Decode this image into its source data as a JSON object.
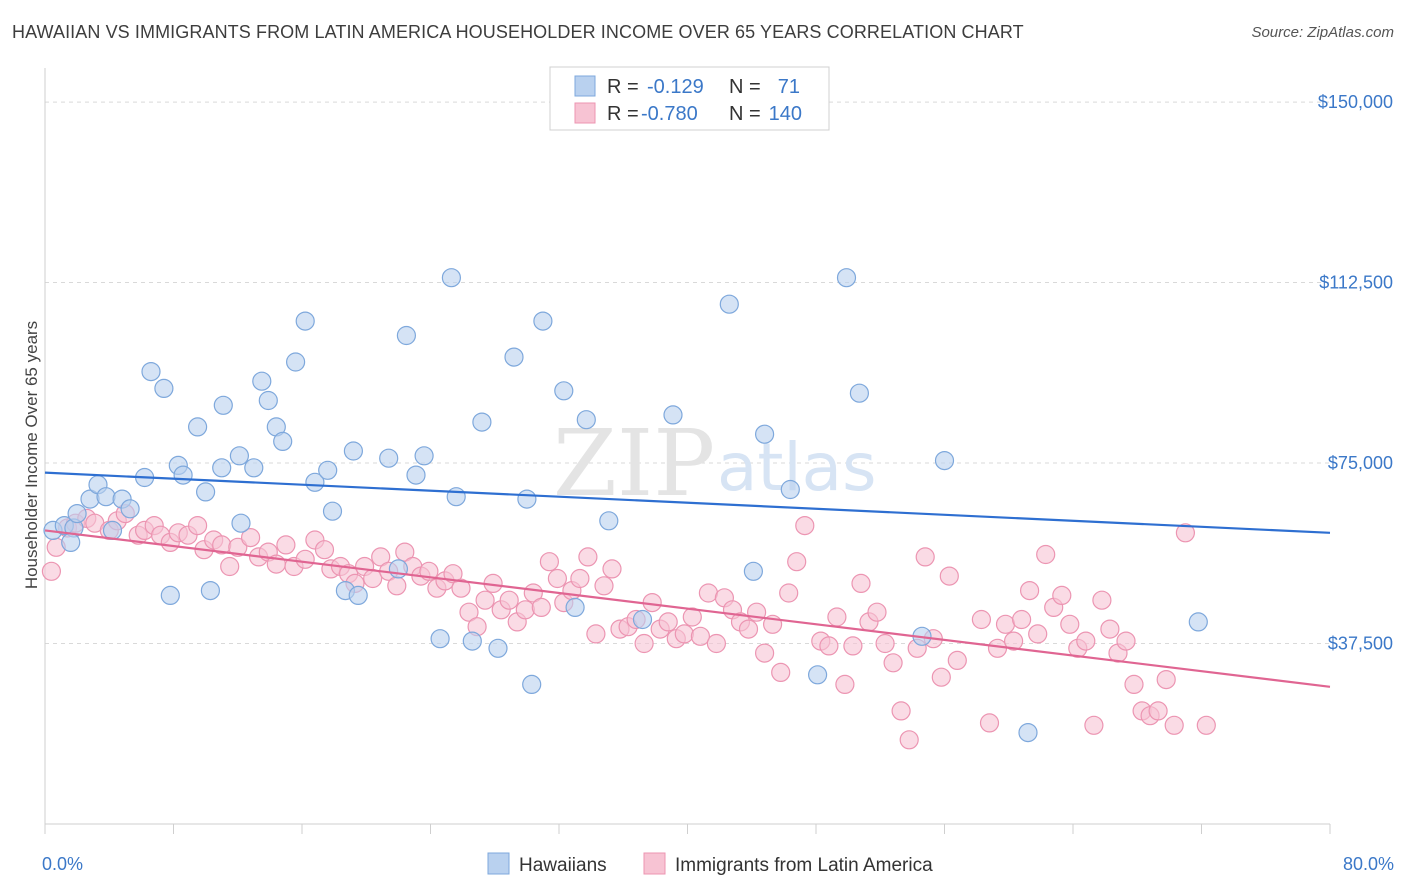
{
  "header": {
    "title": "HAWAIIAN VS IMMIGRANTS FROM LATIN AMERICA HOUSEHOLDER INCOME OVER 65 YEARS CORRELATION CHART",
    "source": "Source: ZipAtlas.com"
  },
  "watermark": {
    "zip": "ZIP",
    "atlas": "atlas"
  },
  "legend": {
    "r_label": "R =",
    "n_label": "N =",
    "series": [
      {
        "r": "-0.129",
        "n": "71"
      },
      {
        "r": "-0.780",
        "n": "140"
      }
    ]
  },
  "bottom_legend": [
    "Hawaiians",
    "Immigrants from Latin America"
  ],
  "colors": {
    "blue_fill": "#b9d1ef",
    "blue_stroke": "#7ea8dc",
    "blue_line": "#2e6fd1",
    "pink_fill": "#f7c3d3",
    "pink_stroke": "#ec95b2",
    "pink_line": "#e06592",
    "tick_text": "#3b78c8",
    "grid": "#d9d9d9"
  },
  "chart_data": {
    "type": "scatter",
    "title": "HAWAIIAN VS IMMIGRANTS FROM LATIN AMERICA HOUSEHOLDER INCOME OVER 65 YEARS CORRELATION CHART",
    "xlabel": "",
    "ylabel": "Householder Income Over 65 years",
    "xlim": [
      0,
      80
    ],
    "ylim": [
      0,
      155000
    ],
    "x_tick_labels": [
      "0.0%",
      "80.0%"
    ],
    "y_ticks": [
      37500,
      75000,
      112500,
      150000
    ],
    "y_tick_labels": [
      "$37,500",
      "$75,000",
      "$112,500",
      "$150,000"
    ],
    "grid": true,
    "legend_position": "top-center",
    "series": [
      {
        "name": "Hawaiians",
        "trend": [
          [
            0,
            73000
          ],
          [
            80,
            60500
          ]
        ],
        "points": [
          [
            0.5,
            61000
          ],
          [
            1.2,
            62000
          ],
          [
            1.8,
            61500
          ],
          [
            1.6,
            58500
          ],
          [
            2.0,
            64500
          ],
          [
            2.8,
            67500
          ],
          [
            3.3,
            70500
          ],
          [
            3.8,
            68000
          ],
          [
            4.2,
            61000
          ],
          [
            4.8,
            67500
          ],
          [
            5.3,
            65500
          ],
          [
            6.2,
            72000
          ],
          [
            6.6,
            94000
          ],
          [
            7.4,
            90500
          ],
          [
            7.8,
            47500
          ],
          [
            8.3,
            74500
          ],
          [
            8.6,
            72500
          ],
          [
            9.5,
            82500
          ],
          [
            10.0,
            69000
          ],
          [
            10.3,
            48500
          ],
          [
            11.0,
            74000
          ],
          [
            11.1,
            87000
          ],
          [
            12.1,
            76500
          ],
          [
            12.2,
            62500
          ],
          [
            13.0,
            74000
          ],
          [
            13.5,
            92000
          ],
          [
            13.9,
            88000
          ],
          [
            14.4,
            82500
          ],
          [
            14.8,
            79500
          ],
          [
            15.6,
            96000
          ],
          [
            16.2,
            104500
          ],
          [
            16.8,
            71000
          ],
          [
            17.6,
            73500
          ],
          [
            17.9,
            65000
          ],
          [
            18.7,
            48500
          ],
          [
            19.2,
            77500
          ],
          [
            19.5,
            47500
          ],
          [
            21.4,
            76000
          ],
          [
            22.0,
            53000
          ],
          [
            22.5,
            101500
          ],
          [
            23.1,
            72500
          ],
          [
            23.6,
            76500
          ],
          [
            24.6,
            38500
          ],
          [
            25.3,
            113500
          ],
          [
            25.6,
            68000
          ],
          [
            26.6,
            38000
          ],
          [
            27.2,
            83500
          ],
          [
            28.2,
            36500
          ],
          [
            29.2,
            97000
          ],
          [
            30.0,
            67500
          ],
          [
            30.3,
            29000
          ],
          [
            31.0,
            104500
          ],
          [
            32.3,
            90000
          ],
          [
            33.0,
            45000
          ],
          [
            33.7,
            84000
          ],
          [
            35.1,
            63000
          ],
          [
            37.2,
            42500
          ],
          [
            39.1,
            85000
          ],
          [
            42.6,
            108000
          ],
          [
            44.1,
            52500
          ],
          [
            44.8,
            81000
          ],
          [
            46.4,
            69500
          ],
          [
            48.1,
            31000
          ],
          [
            49.9,
            113500
          ],
          [
            50.7,
            89500
          ],
          [
            54.6,
            39000
          ],
          [
            56.0,
            75500
          ],
          [
            61.2,
            19000
          ],
          [
            71.8,
            42000
          ]
        ]
      },
      {
        "name": "Immigrants from Latin America",
        "trend": [
          [
            0,
            61000
          ],
          [
            80,
            28500
          ]
        ],
        "points": [
          [
            0.4,
            52500
          ],
          [
            0.7,
            57500
          ],
          [
            1.4,
            61500
          ],
          [
            1.9,
            62500
          ],
          [
            2.6,
            63500
          ],
          [
            3.1,
            62500
          ],
          [
            4.0,
            61000
          ],
          [
            4.5,
            63000
          ],
          [
            5.0,
            64500
          ],
          [
            5.8,
            60000
          ],
          [
            6.2,
            61000
          ],
          [
            6.8,
            62000
          ],
          [
            7.2,
            60000
          ],
          [
            7.8,
            58500
          ],
          [
            8.3,
            60500
          ],
          [
            8.9,
            60000
          ],
          [
            9.5,
            62000
          ],
          [
            9.9,
            57000
          ],
          [
            10.5,
            59000
          ],
          [
            11.0,
            58000
          ],
          [
            11.5,
            53500
          ],
          [
            12.0,
            57500
          ],
          [
            12.8,
            59500
          ],
          [
            13.3,
            55500
          ],
          [
            13.9,
            56500
          ],
          [
            14.4,
            54000
          ],
          [
            15.0,
            58000
          ],
          [
            15.5,
            53500
          ],
          [
            16.2,
            55000
          ],
          [
            16.8,
            59000
          ],
          [
            17.4,
            57000
          ],
          [
            17.8,
            53000
          ],
          [
            18.4,
            53500
          ],
          [
            18.9,
            52000
          ],
          [
            19.3,
            50000
          ],
          [
            19.9,
            53500
          ],
          [
            20.4,
            51000
          ],
          [
            20.9,
            55500
          ],
          [
            21.4,
            52500
          ],
          [
            21.9,
            49500
          ],
          [
            22.4,
            56500
          ],
          [
            22.9,
            53500
          ],
          [
            23.4,
            51500
          ],
          [
            23.9,
            52500
          ],
          [
            24.4,
            49000
          ],
          [
            24.9,
            50500
          ],
          [
            25.4,
            52000
          ],
          [
            25.9,
            49000
          ],
          [
            26.4,
            44000
          ],
          [
            26.9,
            41000
          ],
          [
            27.4,
            46500
          ],
          [
            27.9,
            50000
          ],
          [
            28.4,
            44500
          ],
          [
            28.9,
            46500
          ],
          [
            29.4,
            42000
          ],
          [
            29.9,
            44500
          ],
          [
            30.4,
            48000
          ],
          [
            30.9,
            45000
          ],
          [
            31.4,
            54500
          ],
          [
            31.9,
            51000
          ],
          [
            32.3,
            46000
          ],
          [
            32.8,
            48500
          ],
          [
            33.3,
            51000
          ],
          [
            33.8,
            55500
          ],
          [
            34.3,
            39500
          ],
          [
            34.8,
            49500
          ],
          [
            35.3,
            53000
          ],
          [
            35.8,
            40500
          ],
          [
            36.3,
            41000
          ],
          [
            36.8,
            42500
          ],
          [
            37.3,
            37500
          ],
          [
            37.8,
            46000
          ],
          [
            38.3,
            40500
          ],
          [
            38.8,
            42000
          ],
          [
            39.3,
            38500
          ],
          [
            39.8,
            39500
          ],
          [
            40.3,
            43000
          ],
          [
            40.8,
            39000
          ],
          [
            41.3,
            48000
          ],
          [
            41.8,
            37500
          ],
          [
            42.3,
            47000
          ],
          [
            42.8,
            44500
          ],
          [
            43.3,
            42000
          ],
          [
            43.8,
            40500
          ],
          [
            44.3,
            44000
          ],
          [
            44.8,
            35500
          ],
          [
            45.3,
            41500
          ],
          [
            45.8,
            31500
          ],
          [
            46.3,
            48000
          ],
          [
            46.8,
            54500
          ],
          [
            47.3,
            62000
          ],
          [
            48.3,
            38000
          ],
          [
            48.8,
            37000
          ],
          [
            49.3,
            43000
          ],
          [
            49.8,
            29000
          ],
          [
            50.3,
            37000
          ],
          [
            50.8,
            50000
          ],
          [
            51.3,
            42000
          ],
          [
            51.8,
            44000
          ],
          [
            52.3,
            37500
          ],
          [
            52.8,
            33500
          ],
          [
            53.3,
            23500
          ],
          [
            53.8,
            17500
          ],
          [
            54.3,
            36500
          ],
          [
            54.8,
            55500
          ],
          [
            55.3,
            38500
          ],
          [
            55.8,
            30500
          ],
          [
            56.3,
            51500
          ],
          [
            56.8,
            34000
          ],
          [
            58.3,
            42500
          ],
          [
            58.8,
            21000
          ],
          [
            59.3,
            36500
          ],
          [
            59.8,
            41500
          ],
          [
            60.3,
            38000
          ],
          [
            60.8,
            42500
          ],
          [
            61.3,
            48500
          ],
          [
            61.8,
            39500
          ],
          [
            62.3,
            56000
          ],
          [
            62.8,
            45000
          ],
          [
            63.3,
            47500
          ],
          [
            63.8,
            41500
          ],
          [
            64.3,
            36500
          ],
          [
            64.8,
            38000
          ],
          [
            65.3,
            20500
          ],
          [
            65.8,
            46500
          ],
          [
            66.3,
            40500
          ],
          [
            66.8,
            35500
          ],
          [
            67.3,
            38000
          ],
          [
            67.8,
            29000
          ],
          [
            68.3,
            23500
          ],
          [
            68.8,
            22500
          ],
          [
            69.3,
            23500
          ],
          [
            69.8,
            30000
          ],
          [
            70.3,
            20500
          ],
          [
            71.0,
            60500
          ],
          [
            72.3,
            20500
          ]
        ]
      }
    ]
  }
}
